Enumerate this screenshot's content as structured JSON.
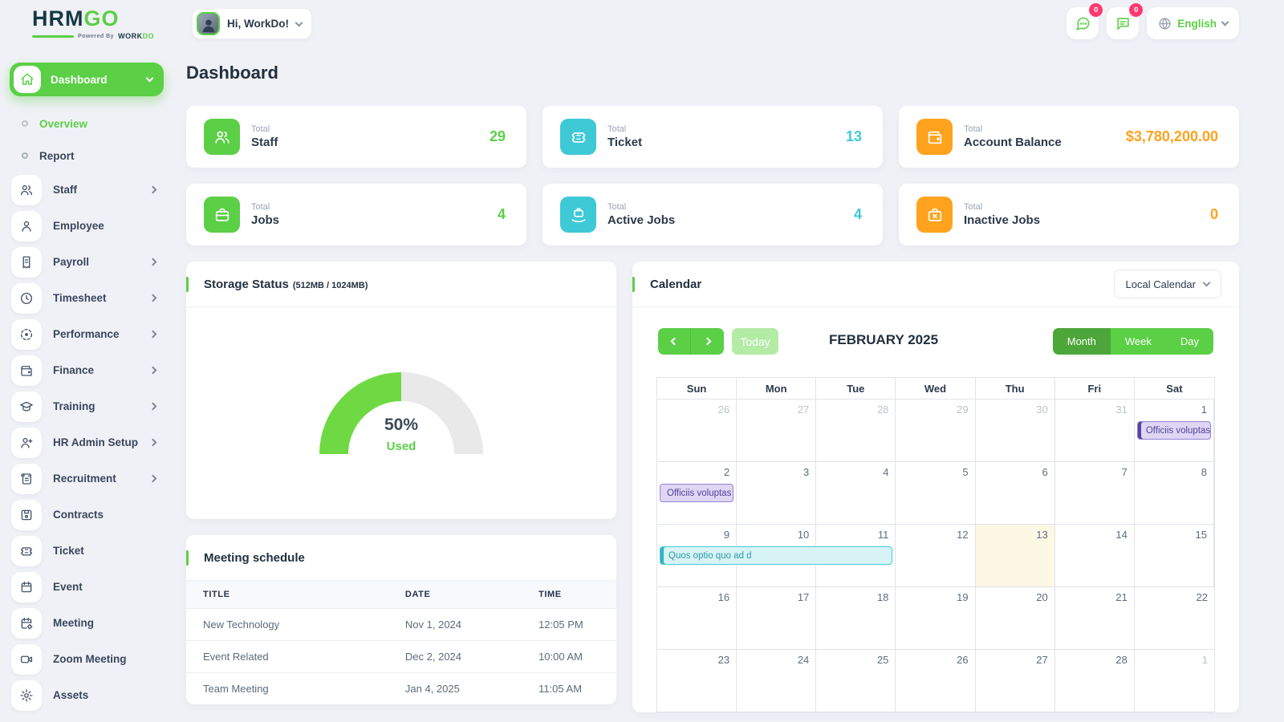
{
  "brand": {
    "name_primary": "HRM",
    "name_secondary": "GO",
    "tagline_prefix": "Powered By",
    "tagline_brand_dark": "WORK",
    "tagline_brand_green": "DO"
  },
  "topbar": {
    "user_greeting": "Hi, WorkDo!",
    "language": "English",
    "messages_badge": "0",
    "notifications_badge": "0"
  },
  "sidebar": {
    "active_item": {
      "label": "Dashboard",
      "icon": "home-icon"
    },
    "sub_items": [
      {
        "label": "Overview",
        "active": true,
        "expandable": false
      },
      {
        "label": "Report",
        "active": false,
        "expandable": true
      }
    ],
    "items": [
      {
        "label": "Staff",
        "icon": "users-icon",
        "expandable": true
      },
      {
        "label": "Employee",
        "icon": "user-icon",
        "expandable": false
      },
      {
        "label": "Payroll",
        "icon": "receipt-icon",
        "expandable": true
      },
      {
        "label": "Timesheet",
        "icon": "clock-icon",
        "expandable": true
      },
      {
        "label": "Performance",
        "icon": "target-icon",
        "expandable": true
      },
      {
        "label": "Finance",
        "icon": "wallet-icon",
        "expandable": true
      },
      {
        "label": "Training",
        "icon": "graduation-cap-icon",
        "expandable": true
      },
      {
        "label": "HR Admin Setup",
        "icon": "user-plus-icon",
        "expandable": true
      },
      {
        "label": "Recruitment",
        "icon": "scroll-icon",
        "expandable": true
      },
      {
        "label": "Contracts",
        "icon": "contract-icon",
        "expandable": false
      },
      {
        "label": "Ticket",
        "icon": "ticket-icon",
        "expandable": false
      },
      {
        "label": "Event",
        "icon": "calendar-icon",
        "expandable": false
      },
      {
        "label": "Meeting",
        "icon": "calendar-gear-icon",
        "expandable": false
      },
      {
        "label": "Zoom Meeting",
        "icon": "video-icon",
        "expandable": false
      },
      {
        "label": "Assets",
        "icon": "gear-icon",
        "expandable": false
      }
    ]
  },
  "page": {
    "title": "Dashboard"
  },
  "stats_cards": [
    {
      "prefix": "Total",
      "label": "Staff",
      "value": "29",
      "color": "#5bcf46",
      "icon": "users-icon"
    },
    {
      "prefix": "Total",
      "label": "Ticket",
      "value": "13",
      "color": "#3ec9d6",
      "icon": "ticket-icon"
    },
    {
      "prefix": "Total",
      "label": "Account Balance",
      "value": "$3,780,200.00",
      "color": "#ffa21d",
      "icon": "wallet-icon"
    },
    {
      "prefix": "Total",
      "label": "Jobs",
      "value": "4",
      "color": "#5bcf46",
      "icon": "briefcase-icon"
    },
    {
      "prefix": "Total",
      "label": "Active Jobs",
      "value": "4",
      "color": "#3ec9d6",
      "icon": "briefcase-hand-icon"
    },
    {
      "prefix": "Total",
      "label": "Inactive Jobs",
      "value": "0",
      "color": "#ffa21d",
      "icon": "briefcase-x-icon"
    }
  ],
  "storage": {
    "title": "Storage Status",
    "subtitle": "(512MB / 1024MB)",
    "percent": 50,
    "percent_label": "50%",
    "used_label": "Used",
    "used_color": "#6fd943",
    "track_color": "#e9e9ea"
  },
  "meetings": {
    "title": "Meeting schedule",
    "columns": [
      "TITLE",
      "DATE",
      "TIME"
    ],
    "rows": [
      [
        "New Technology",
        "Nov 1, 2024",
        "12:05 PM"
      ],
      [
        "Event Related",
        "Dec 2, 2024",
        "10:00 AM"
      ],
      [
        "Team Meeting",
        "Jan 4, 2025",
        "11:05 AM"
      ]
    ]
  },
  "calendar": {
    "title": "Calendar",
    "source_select": "Local Calendar",
    "today_label": "Today",
    "month_title": "FEBRUARY 2025",
    "views": [
      "Month",
      "Week",
      "Day"
    ],
    "active_view": "Month",
    "day_headers": [
      "Sun",
      "Mon",
      "Tue",
      "Wed",
      "Thu",
      "Fri",
      "Sat"
    ],
    "weeks": [
      [
        {
          "d": "26",
          "muted": true
        },
        {
          "d": "27",
          "muted": true
        },
        {
          "d": "28",
          "muted": true
        },
        {
          "d": "29",
          "muted": true
        },
        {
          "d": "30",
          "muted": true
        },
        {
          "d": "31",
          "muted": true
        },
        {
          "d": "1",
          "muted": false
        }
      ],
      [
        {
          "d": "2",
          "muted": false
        },
        {
          "d": "3",
          "muted": false
        },
        {
          "d": "4",
          "muted": false
        },
        {
          "d": "5",
          "muted": false
        },
        {
          "d": "6",
          "muted": false
        },
        {
          "d": "7",
          "muted": false
        },
        {
          "d": "8",
          "muted": false
        }
      ],
      [
        {
          "d": "9",
          "muted": false
        },
        {
          "d": "10",
          "muted": false
        },
        {
          "d": "11",
          "muted": false
        },
        {
          "d": "12",
          "muted": false
        },
        {
          "d": "13",
          "muted": false,
          "today": true
        },
        {
          "d": "14",
          "muted": false
        },
        {
          "d": "15",
          "muted": false
        }
      ],
      [
        {
          "d": "16",
          "muted": false
        },
        {
          "d": "17",
          "muted": false
        },
        {
          "d": "18",
          "muted": false
        },
        {
          "d": "19",
          "muted": false
        },
        {
          "d": "20",
          "muted": false
        },
        {
          "d": "21",
          "muted": false
        },
        {
          "d": "22",
          "muted": false
        }
      ],
      [
        {
          "d": "23",
          "muted": false
        },
        {
          "d": "24",
          "muted": false
        },
        {
          "d": "25",
          "muted": false
        },
        {
          "d": "26",
          "muted": false
        },
        {
          "d": "27",
          "muted": false
        },
        {
          "d": "28",
          "muted": false
        },
        {
          "d": "1",
          "muted": true
        }
      ]
    ],
    "events": [
      {
        "label": "Officiis voluptas e",
        "week": 0,
        "col": 6,
        "span": 1,
        "theme": "purple",
        "bar": true
      },
      {
        "label": "Officiis voluptas c",
        "week": 1,
        "col": 0,
        "span": 1,
        "theme": "purple",
        "bar": false
      },
      {
        "label": "Quos optio quo ad d",
        "week": 2,
        "col": 0,
        "span": 3,
        "theme": "teal",
        "bar": true
      }
    ],
    "event_themes": {
      "purple": {
        "bg": "#ded6f3",
        "border": "#9384d4",
        "bar": "#51459e",
        "text": "#51459e"
      },
      "teal": {
        "bg": "#d8f4f7",
        "border": "#49cbd8",
        "bar": "#2fb4c2",
        "text": "#2e9aa6"
      }
    }
  }
}
